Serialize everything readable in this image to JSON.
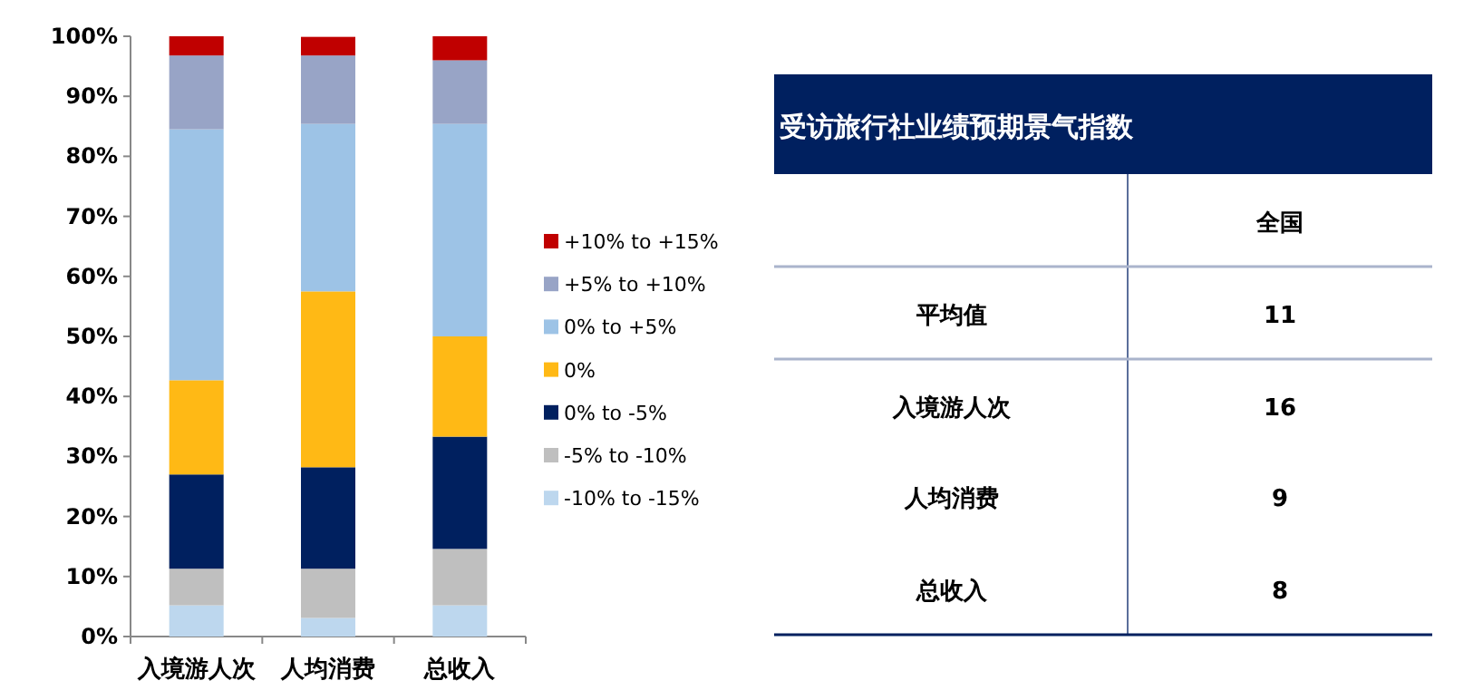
{
  "chart_data": [
    {
      "type": "bar",
      "stacked": true,
      "categories": [
        "入境游人次",
        "人均消费",
        "总收入"
      ],
      "legend": "right",
      "ylim": [
        0,
        100
      ],
      "yticks": [
        {
          "value": 0,
          "label": "0%"
        },
        {
          "value": 10,
          "label": "10%"
        },
        {
          "value": 20,
          "label": "20%"
        },
        {
          "value": 30,
          "label": "30%"
        },
        {
          "value": 40,
          "label": "40%"
        },
        {
          "value": 50,
          "label": "50%"
        },
        {
          "value": 60,
          "label": "60%"
        },
        {
          "value": 70,
          "label": "70%"
        },
        {
          "value": 80,
          "label": "80%"
        },
        {
          "value": 90,
          "label": "90%"
        },
        {
          "value": 100,
          "label": "100%"
        }
      ],
      "series": [
        {
          "name": "-10% to -15%",
          "color": "#bdd7ee",
          "values": [
            5.2,
            3.1,
            5.2
          ]
        },
        {
          "name": "-5% to -10%",
          "color": "#bfbfbf",
          "values": [
            6.1,
            8.2,
            9.4
          ]
        },
        {
          "name": "0% to -5%",
          "color": "#00205f",
          "values": [
            15.7,
            16.9,
            18.7
          ]
        },
        {
          "name": "0%",
          "color": "#ffb915",
          "values": [
            15.7,
            29.3,
            16.7
          ]
        },
        {
          "name": "0% to +5%",
          "color": "#9dc3e6",
          "values": [
            41.8,
            27.9,
            35.4
          ]
        },
        {
          "name": "+5% to +10%",
          "color": "#98a4c6",
          "values": [
            12.3,
            11.4,
            10.6
          ]
        },
        {
          "name": "+10% to +15%",
          "color": "#c00000",
          "values": [
            3.2,
            3.1,
            4.0
          ]
        }
      ]
    },
    {
      "type": "other",
      "title": "受访旅行社业绩预期景气指数",
      "annotations": [
        "全国"
      ],
      "categories": [
        "平均值",
        "入境游人次",
        "人均消费",
        "总收入"
      ],
      "values": [
        11,
        16,
        9,
        8
      ],
      "data_labels": true
    }
  ]
}
